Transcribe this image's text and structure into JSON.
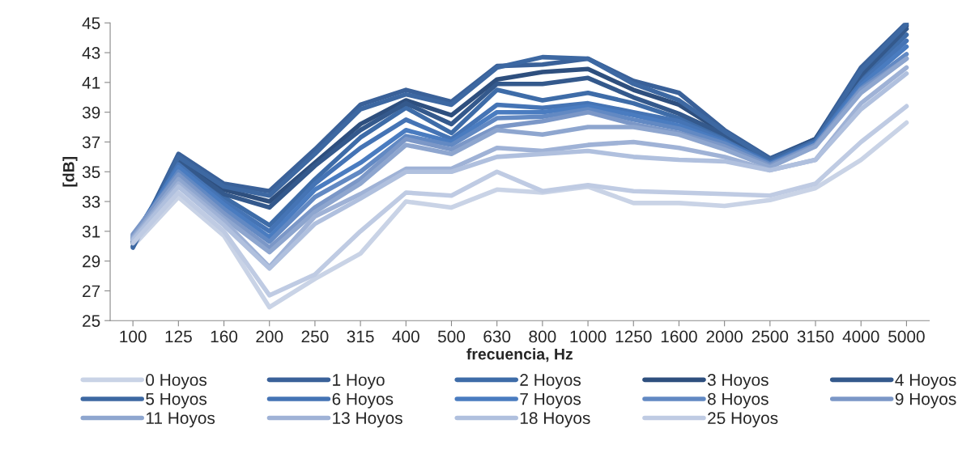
{
  "chart_data": {
    "type": "line",
    "xlabel": "frecuencia, Hz",
    "ylabel": "[dB]",
    "categories": [
      "100",
      "125",
      "160",
      "200",
      "250",
      "315",
      "400",
      "500",
      "630",
      "800",
      "1000",
      "1250",
      "1600",
      "2000",
      "2500",
      "3150",
      "4000",
      "5000"
    ],
    "ylim": [
      25,
      45
    ],
    "yticks": [
      25,
      27,
      29,
      31,
      33,
      35,
      37,
      39,
      41,
      43,
      45
    ],
    "grid": false,
    "legend": "bottom",
    "marker": "none",
    "line_style": "solid",
    "series": [
      {
        "name": "0 Hoyos",
        "color": "#c9d3e6",
        "values": [
          30.0,
          33.3,
          30.7,
          25.9,
          27.8,
          29.5,
          33.0,
          32.6,
          33.8,
          33.6,
          34.0,
          32.9,
          32.9,
          32.7,
          33.1,
          33.9,
          35.8,
          38.3
        ]
      },
      {
        "name": "1 Hoyo",
        "color": "#3a6199",
        "values": [
          30.0,
          36.2,
          34.2,
          33.7,
          36.5,
          39.5,
          40.5,
          39.7,
          42.1,
          42.2,
          42.6,
          41.1,
          40.3,
          37.8,
          35.9,
          37.2,
          42.0,
          45.0
        ]
      },
      {
        "name": "2 Hoyos",
        "color": "#3e6ca8",
        "values": [
          30.5,
          35.6,
          33.3,
          31.4,
          34.5,
          37.3,
          39.3,
          37.6,
          40.5,
          39.8,
          40.3,
          39.6,
          38.6,
          37.3,
          35.6,
          37.0,
          41.3,
          44.2
        ]
      },
      {
        "name": "3 Hoyos",
        "color": "#2e4f7e",
        "values": [
          30.2,
          35.8,
          33.8,
          33.0,
          35.6,
          38.2,
          39.8,
          38.8,
          41.2,
          41.7,
          41.9,
          40.5,
          39.5,
          37.6,
          35.8,
          37.2,
          41.7,
          44.8
        ]
      },
      {
        "name": "4 Hoyos",
        "color": "#34598c",
        "values": [
          30.3,
          35.7,
          33.5,
          32.6,
          35.4,
          37.8,
          39.6,
          38.2,
          40.9,
          40.9,
          41.3,
          40.0,
          38.9,
          37.5,
          35.7,
          37.1,
          41.5,
          44.6
        ]
      },
      {
        "name": "5 Hoyos",
        "color": "#3d68a2",
        "values": [
          29.9,
          36.0,
          34.0,
          33.4,
          36.2,
          39.2,
          40.2,
          39.5,
          42.0,
          42.7,
          42.6,
          40.9,
          39.8,
          37.7,
          35.8,
          37.1,
          41.8,
          44.9
        ]
      },
      {
        "name": "6 Hoyos",
        "color": "#4574b5",
        "values": [
          30.4,
          35.5,
          33.0,
          31.0,
          34.2,
          36.6,
          38.5,
          37.2,
          39.5,
          39.3,
          39.6,
          39.0,
          38.4,
          37.1,
          35.6,
          37.0,
          41.0,
          43.8
        ]
      },
      {
        "name": "7 Hoyos",
        "color": "#4a7cc0",
        "values": [
          30.6,
          35.3,
          32.8,
          30.6,
          33.8,
          35.6,
          37.8,
          37.0,
          39.0,
          39.0,
          39.4,
          38.8,
          38.1,
          37.0,
          35.5,
          36.9,
          40.8,
          43.4
        ]
      },
      {
        "name": "8 Hoyos",
        "color": "#6289c3",
        "values": [
          30.7,
          35.0,
          32.5,
          30.3,
          33.3,
          35.0,
          37.4,
          36.8,
          38.6,
          38.7,
          39.2,
          38.5,
          37.9,
          36.9,
          35.5,
          36.8,
          40.6,
          42.9
        ]
      },
      {
        "name": "9 Hoyos",
        "color": "#7b97c7",
        "values": [
          30.8,
          34.8,
          32.2,
          29.9,
          32.6,
          34.5,
          37.2,
          36.5,
          38.0,
          38.4,
          39.0,
          38.2,
          37.6,
          36.7,
          35.4,
          36.8,
          40.5,
          42.6
        ]
      },
      {
        "name": "11 Hoyos",
        "color": "#8ea6cf",
        "values": [
          30.6,
          34.5,
          31.9,
          29.6,
          32.3,
          34.2,
          36.8,
          36.2,
          37.8,
          37.5,
          38.0,
          38.0,
          37.5,
          36.5,
          35.3,
          36.7,
          40.3,
          42.6
        ]
      },
      {
        "name": "13 Hoyos",
        "color": "#9fb2d6",
        "values": [
          30.5,
          34.2,
          31.7,
          28.6,
          32.0,
          33.5,
          35.2,
          35.2,
          36.6,
          36.4,
          36.8,
          37.0,
          36.6,
          36.0,
          35.1,
          35.8,
          39.6,
          42.0
        ]
      },
      {
        "name": "18 Hoyos",
        "color": "#b0c0de",
        "values": [
          30.4,
          34.0,
          31.4,
          28.5,
          31.5,
          33.2,
          35.0,
          35.0,
          36.0,
          36.2,
          36.4,
          36.0,
          35.8,
          35.7,
          35.1,
          35.8,
          39.2,
          41.6
        ]
      },
      {
        "name": "25 Hoyos",
        "color": "#bfcbe3",
        "values": [
          30.2,
          33.6,
          31.0,
          26.7,
          28.1,
          31.0,
          33.6,
          33.4,
          35.0,
          33.7,
          34.1,
          33.7,
          33.6,
          33.5,
          33.4,
          34.2,
          37.0,
          39.4
        ]
      }
    ]
  }
}
